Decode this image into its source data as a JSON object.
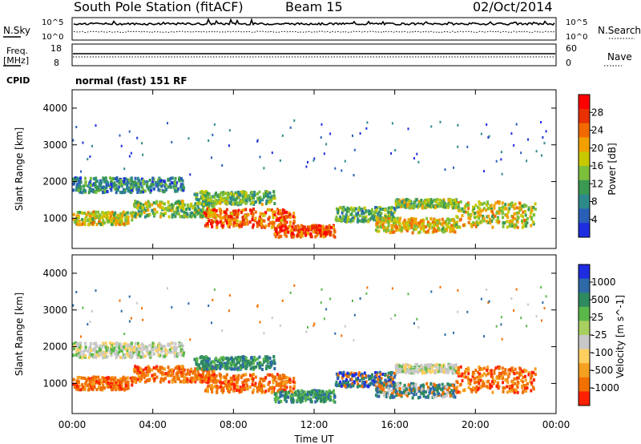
{
  "header": {
    "station": "South Pole Station (fitACF)",
    "beam": "Beam 15",
    "date": "02/Oct/2014"
  },
  "strip_labels": {
    "nsky": "N.Sky",
    "nsearch": "N.Search",
    "freq_line1": "Freq.",
    "freq_line2": "[MHz]",
    "nave": "Nave",
    "cpid": "CPID",
    "cpid_value": "normal (fast) 151 RF"
  },
  "colors": {
    "power_scale": [
      "#1f2de0",
      "#2a5fb8",
      "#2e8a8a",
      "#3a9a52",
      "#7cbf3a",
      "#c8c800",
      "#f2a000",
      "#f06a00",
      "#e83000",
      "#ff0000"
    ],
    "velocity_scale": [
      "#1f2de0",
      "#2e6aa8",
      "#2e8a60",
      "#5ab84a",
      "#a8d060",
      "#c8c8c8",
      "#ffd060",
      "#f5a020",
      "#f07000",
      "#ff2000"
    ]
  },
  "chart_data": [
    {
      "type": "line",
      "title": "N.Sky / N.Search",
      "ylabel_left": "N.Sky",
      "ylabel_right": "N.Search",
      "yticks_left": [
        "10^5",
        "10^0"
      ],
      "yticks_right": [
        "10^5",
        "10^0"
      ],
      "scale": "log"
    },
    {
      "type": "line",
      "title": "Freq. / Nave",
      "ylabel_left": "Freq. [MHz]",
      "ylabel_right": "Nave",
      "yticks_left": [
        "18",
        "8"
      ],
      "yticks_right": [
        "60",
        "0"
      ],
      "ylim_left": [
        8,
        18
      ],
      "ylim_right": [
        0,
        60
      ]
    },
    {
      "type": "heatmap",
      "quantity": "Power",
      "ylabel": "Slant Range [km]",
      "yticks": [
        "1000",
        "2000",
        "3000",
        "4000"
      ],
      "ylim": [
        180,
        4500
      ],
      "xlim_hours": [
        0,
        24
      ],
      "colorbar_label": "Power [dB]",
      "colorbar_ticks": [
        "4",
        "8",
        "12",
        "16",
        "20",
        "24",
        "28"
      ],
      "colorbar_range": [
        0,
        30
      ]
    },
    {
      "type": "heatmap",
      "quantity": "Velocity",
      "ylabel": "Slant Range [km]",
      "yticks": [
        "1000",
        "2000",
        "3000",
        "4000"
      ],
      "ylim": [
        180,
        4500
      ],
      "xlim_hours": [
        0,
        24
      ],
      "xlabel": "Time UT",
      "xticks": [
        "00:00",
        "04:00",
        "08:00",
        "12:00",
        "16:00",
        "20:00",
        "00:00"
      ],
      "colorbar_label": "Velocity [m s^-1]",
      "colorbar_ticks": [
        "1000",
        "500",
        "25",
        "-25",
        "-100",
        "-500",
        "-1000"
      ]
    }
  ]
}
